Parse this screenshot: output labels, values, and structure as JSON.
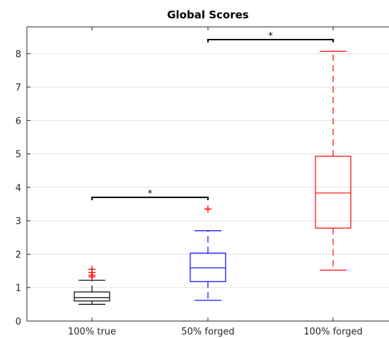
{
  "chart_data": {
    "type": "boxplot",
    "title": "Global Scores",
    "xlabel": "",
    "ylabel": "",
    "ylim": [
      0,
      8.8
    ],
    "y_ticks": [
      0,
      1,
      2,
      3,
      4,
      5,
      6,
      7,
      8
    ],
    "grid": "horizontal",
    "categories": [
      "100% true",
      "50% forged",
      "100% forged"
    ],
    "boxes": [
      {
        "category": "100% true",
        "color": "#000000",
        "whisker_low": 0.5,
        "q1": 0.6,
        "median": 0.7,
        "q3": 0.87,
        "whisker_high": 1.22,
        "outliers": [
          1.32,
          1.37,
          1.45,
          1.55
        ]
      },
      {
        "category": "50% forged",
        "color": "#0000ff",
        "whisker_low": 0.62,
        "q1": 1.18,
        "median": 1.59,
        "q3": 2.03,
        "whisker_high": 2.7,
        "outliers": [
          3.35
        ]
      },
      {
        "category": "100% forged",
        "color": "#ff0000",
        "whisker_low": 1.52,
        "q1": 2.78,
        "median": 3.83,
        "q3": 4.93,
        "whisker_high": 8.07,
        "outliers": []
      }
    ],
    "outlier_color": "#ff0000",
    "significance": [
      {
        "from": 0,
        "to": 1,
        "y": 3.7,
        "label": "*"
      },
      {
        "from": 1,
        "to": 2,
        "y": 8.42,
        "label": "*"
      }
    ]
  }
}
